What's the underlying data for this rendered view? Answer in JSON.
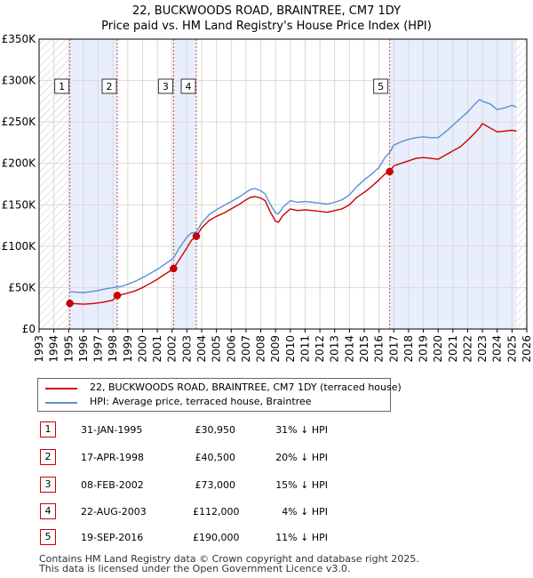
{
  "title_line1": "22, BUCKWOODS ROAD, BRAINTREE, CM7 1DY",
  "title_line2": "Price paid vs. HM Land Registry's House Price Index (HPI)",
  "colors": {
    "property": "#cc0000",
    "hpi": "#5b8fd6",
    "shade": "#e8eefb",
    "hatch": "#c8c8c8",
    "grid": "#d9d9d9"
  },
  "chart_data": {
    "type": "line",
    "xlim": [
      1993,
      2026
    ],
    "ylim": [
      0,
      350000
    ],
    "y_ticks": [
      {
        "value": 0,
        "label": "£0"
      },
      {
        "value": 50000,
        "label": "£50K"
      },
      {
        "value": 100000,
        "label": "£100K"
      },
      {
        "value": 150000,
        "label": "£150K"
      },
      {
        "value": 200000,
        "label": "£200K"
      },
      {
        "value": 250000,
        "label": "£250K"
      },
      {
        "value": 300000,
        "label": "£300K"
      },
      {
        "value": 350000,
        "label": "£350K"
      }
    ],
    "x_ticks": [
      "1993",
      "1994",
      "1995",
      "1996",
      "1997",
      "1998",
      "1999",
      "2000",
      "2001",
      "2002",
      "2003",
      "2004",
      "2005",
      "2006",
      "2007",
      "2008",
      "2009",
      "2010",
      "2011",
      "2012",
      "2013",
      "2014",
      "2015",
      "2016",
      "2017",
      "2018",
      "2019",
      "2020",
      "2021",
      "2022",
      "2023",
      "2024",
      "2025",
      "2026"
    ],
    "hatch_ranges": [
      [
        1993,
        1995.08
      ],
      [
        2025.3,
        2026
      ]
    ],
    "shade_ranges": [
      [
        1995.08,
        1998.29
      ],
      [
        2002.1,
        2003.64
      ],
      [
        2016.72,
        2025.3
      ]
    ],
    "series": [
      {
        "name": "22, BUCKWOODS ROAD, BRAINTREE, CM7 1DY (terraced house)",
        "x": [
          1995.08,
          1995.5,
          1996,
          1996.5,
          1997,
          1997.5,
          1998,
          1998.29,
          1998.6,
          1999,
          1999.5,
          2000,
          2000.5,
          2001,
          2001.5,
          2002,
          2002.1,
          2002.5,
          2003,
          2003.3,
          2003.64,
          2004,
          2004.5,
          2005,
          2005.5,
          2006,
          2006.5,
          2007,
          2007.3,
          2007.6,
          2008,
          2008.3,
          2008.6,
          2009,
          2009.2,
          2009.5,
          2010,
          2010.5,
          2011,
          2011.5,
          2012,
          2012.5,
          2013,
          2013.5,
          2014,
          2014.5,
          2015,
          2015.5,
          2016,
          2016.4,
          2016.72,
          2017,
          2017.5,
          2018,
          2018.5,
          2019,
          2019.5,
          2020,
          2020.5,
          2021,
          2021.5,
          2022,
          2022.5,
          2022.8,
          2023,
          2023.5,
          2024,
          2024.5,
          2025,
          2025.3
        ],
        "values": [
          30950,
          30500,
          30000,
          30500,
          31500,
          33000,
          35000,
          40500,
          41500,
          43500,
          46000,
          50000,
          55000,
          60000,
          66000,
          71500,
          73000,
          84000,
          98000,
          107000,
          112000,
          122000,
          131000,
          136000,
          140000,
          145000,
          150000,
          156000,
          159000,
          160000,
          158000,
          155000,
          143000,
          130000,
          129000,
          137000,
          145000,
          143000,
          144000,
          143000,
          142000,
          141000,
          143000,
          145000,
          150000,
          159000,
          165000,
          172000,
          180000,
          187000,
          190000,
          197000,
          200000,
          203000,
          206000,
          207000,
          206000,
          205000,
          210000,
          215000,
          220000,
          228000,
          237000,
          243000,
          248000,
          243000,
          238000,
          239000,
          240000,
          239000
        ]
      },
      {
        "name": "HPI: Average price, terraced house, Braintree",
        "x": [
          1995.08,
          1995.5,
          1996,
          1996.5,
          1997,
          1997.5,
          1998,
          1998.29,
          1998.6,
          1999,
          1999.5,
          2000,
          2000.5,
          2001,
          2001.5,
          2002,
          2002.1,
          2002.5,
          2003,
          2003.3,
          2003.64,
          2004,
          2004.5,
          2005,
          2005.5,
          2006,
          2006.5,
          2007,
          2007.3,
          2007.6,
          2008,
          2008.3,
          2008.6,
          2009,
          2009.2,
          2009.5,
          2010,
          2010.5,
          2011,
          2011.5,
          2012,
          2012.5,
          2013,
          2013.5,
          2014,
          2014.5,
          2015,
          2015.5,
          2016,
          2016.4,
          2016.72,
          2017,
          2017.5,
          2018,
          2018.5,
          2019,
          2019.5,
          2020,
          2020.5,
          2021,
          2021.5,
          2022,
          2022.5,
          2022.8,
          2023,
          2023.5,
          2024,
          2024.5,
          2025,
          2025.3
        ],
        "values": [
          45000,
          44500,
          44000,
          45000,
          46500,
          48500,
          50000,
          50800,
          51500,
          54000,
          57500,
          62000,
          67000,
          72000,
          78000,
          84500,
          86000,
          98000,
          111000,
          116000,
          117000,
          128000,
          138000,
          144000,
          149000,
          154000,
          159000,
          165000,
          168500,
          169500,
          167000,
          163000,
          152000,
          140000,
          139000,
          147000,
          155000,
          153000,
          154000,
          153000,
          152000,
          151000,
          153000,
          156000,
          162000,
          172000,
          180000,
          187000,
          195000,
          207000,
          213000,
          222000,
          226000,
          229000,
          231000,
          232000,
          231000,
          231000,
          238000,
          246000,
          254000,
          262000,
          272000,
          277000,
          275000,
          272000,
          265000,
          267000,
          270000,
          268000
        ]
      }
    ],
    "sales": [
      {
        "id": "1",
        "x": 1995.08,
        "price": 30950
      },
      {
        "id": "2",
        "x": 1998.29,
        "price": 40500
      },
      {
        "id": "3",
        "x": 2002.1,
        "price": 73000
      },
      {
        "id": "4",
        "x": 2003.64,
        "price": 112000
      },
      {
        "id": "5",
        "x": 2016.72,
        "price": 190000
      }
    ]
  },
  "legend": {
    "property": "22, BUCKWOODS ROAD, BRAINTREE, CM7 1DY (terraced house)",
    "hpi": "HPI: Average price, terraced house, Braintree"
  },
  "transactions": [
    {
      "num": "1",
      "date": "31-JAN-1995",
      "price": "£30,950",
      "hpi": "31% ↓ HPI"
    },
    {
      "num": "2",
      "date": "17-APR-1998",
      "price": "£40,500",
      "hpi": "20% ↓ HPI"
    },
    {
      "num": "3",
      "date": "08-FEB-2002",
      "price": "£73,000",
      "hpi": "15% ↓ HPI"
    },
    {
      "num": "4",
      "date": "22-AUG-2003",
      "price": "£112,000",
      "hpi": "4% ↓ HPI"
    },
    {
      "num": "5",
      "date": "19-SEP-2016",
      "price": "£190,000",
      "hpi": "11% ↓ HPI"
    }
  ],
  "footer_line1": "Contains HM Land Registry data © Crown copyright and database right 2025.",
  "footer_line2": "This data is licensed under the Open Government Licence v3.0."
}
